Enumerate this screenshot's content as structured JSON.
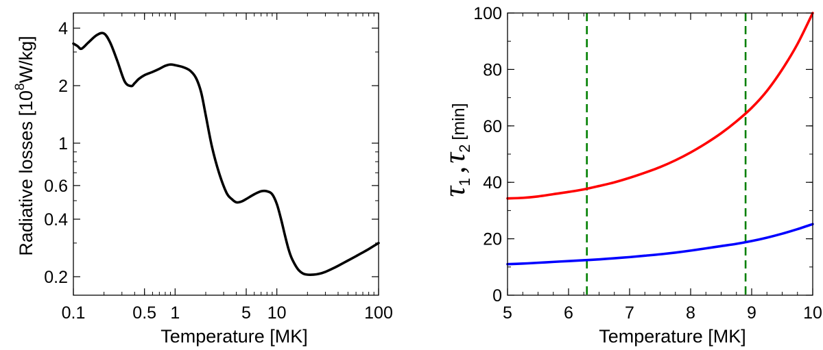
{
  "chart_data": [
    {
      "type": "line",
      "title": "",
      "xlabel": "Temperature [MK]",
      "ylabel": "Radiative losses [10",
      "ylabel_superscript": "8",
      "ylabel_suffix": "W/kg]",
      "xscale": "log",
      "yscale": "log",
      "xlim": [
        0.1,
        100
      ],
      "ylim": [
        0.16,
        4.8
      ],
      "xticks": [
        0.1,
        0.5,
        1,
        5,
        10,
        100
      ],
      "xtick_labels": [
        "0.1",
        "0.5",
        "1",
        "5",
        "10",
        "100"
      ],
      "yticks": [
        0.2,
        0.4,
        0.6,
        1,
        2,
        4
      ],
      "ytick_labels": [
        "0.2",
        "0.4",
        "0.6",
        "1",
        "2",
        "4"
      ],
      "grid": false,
      "series": [
        {
          "name": "radiative losses",
          "color": "#000000",
          "x": [
            0.1,
            0.11,
            0.12,
            0.14,
            0.17,
            0.2,
            0.23,
            0.27,
            0.32,
            0.37,
            0.4,
            0.44,
            0.5,
            0.6,
            0.7,
            0.8,
            0.9,
            1.0,
            1.2,
            1.4,
            1.6,
            1.8,
            2.0,
            2.3,
            2.7,
            3.2,
            3.6,
            4.0,
            4.5,
            5.0,
            6.0,
            7.0,
            8.0,
            9.0,
            10.0,
            11.0,
            12.0,
            13.0,
            14.0,
            16.0,
            18.0,
            20.0,
            23.0,
            26.0,
            30.0,
            35.0,
            40.0,
            50.0,
            60.0,
            70.0,
            80.0,
            90.0,
            100.0
          ],
          "y": [
            3.32,
            3.22,
            3.12,
            3.36,
            3.68,
            3.75,
            3.36,
            2.7,
            2.1,
            1.99,
            2.06,
            2.17,
            2.27,
            2.36,
            2.45,
            2.54,
            2.58,
            2.56,
            2.5,
            2.4,
            2.2,
            1.85,
            1.4,
            0.96,
            0.7,
            0.55,
            0.51,
            0.49,
            0.495,
            0.51,
            0.54,
            0.56,
            0.56,
            0.54,
            0.48,
            0.4,
            0.33,
            0.28,
            0.25,
            0.22,
            0.208,
            0.205,
            0.205,
            0.207,
            0.212,
            0.22,
            0.228,
            0.243,
            0.256,
            0.268,
            0.279,
            0.29,
            0.3
          ]
        }
      ]
    },
    {
      "type": "line",
      "title": "",
      "xlabel": "Temperature [MK]",
      "ylabel_symbol": "τ",
      "ylabel_sub1": "1",
      "ylabel_sep": ",",
      "ylabel_sub2": "2",
      "ylabel_unit": "[min]",
      "xlim": [
        5,
        10
      ],
      "ylim": [
        0,
        100
      ],
      "xticks": [
        5,
        6,
        7,
        8,
        9,
        10
      ],
      "xtick_labels": [
        "5",
        "6",
        "7",
        "8",
        "9",
        "10"
      ],
      "yticks": [
        0,
        20,
        40,
        60,
        80,
        100
      ],
      "ytick_labels": [
        "0",
        "20",
        "40",
        "60",
        "80",
        "100"
      ],
      "grid": false,
      "series": [
        {
          "name": "tau1",
          "color": "#ff0000",
          "x": [
            5.0,
            5.25,
            5.5,
            5.75,
            6.0,
            6.25,
            6.5,
            6.75,
            7.0,
            7.25,
            7.5,
            7.75,
            8.0,
            8.25,
            8.5,
            8.75,
            9.0,
            9.25,
            9.5,
            9.75,
            10.0
          ],
          "y": [
            34.3,
            34.5,
            35.0,
            35.8,
            36.6,
            37.5,
            38.7,
            40.0,
            41.6,
            43.4,
            45.4,
            47.8,
            50.6,
            53.8,
            57.4,
            61.6,
            66.4,
            72.4,
            80.0,
            89.0,
            100.0
          ]
        },
        {
          "name": "tau2",
          "color": "#0000ff",
          "x": [
            5.0,
            5.25,
            5.5,
            5.75,
            6.0,
            6.25,
            6.5,
            6.75,
            7.0,
            7.25,
            7.5,
            7.75,
            8.0,
            8.25,
            8.5,
            8.75,
            9.0,
            9.25,
            9.5,
            9.75,
            10.0
          ],
          "y": [
            11.0,
            11.2,
            11.5,
            11.8,
            12.1,
            12.4,
            12.7,
            13.1,
            13.5,
            14.0,
            14.5,
            15.1,
            15.8,
            16.6,
            17.4,
            18.2,
            19.2,
            20.4,
            21.8,
            23.4,
            25.2
          ]
        }
      ],
      "vlines": [
        {
          "x": 6.3,
          "color": "#008000",
          "style": "dashed"
        },
        {
          "x": 8.9,
          "color": "#008000",
          "style": "dashed"
        }
      ]
    }
  ]
}
